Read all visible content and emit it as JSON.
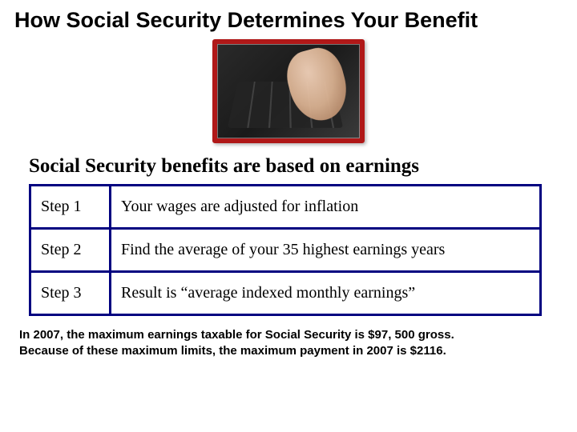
{
  "title": "How Social Security Determines Your Benefit",
  "subtitle": "Social Security benefits are based on earnings",
  "image_alt": "hand-typing-on-calculator",
  "image_border_color": "#b01818",
  "table": {
    "border_color": "#000080",
    "rows": [
      {
        "label": "Step 1",
        "text": "Your wages are adjusted for inflation"
      },
      {
        "label": "Step 2",
        "text": "Find the average of your 35 highest earnings years"
      },
      {
        "label": "Step 3",
        "text": "Result is “average indexed monthly earnings”"
      }
    ]
  },
  "footnote": {
    "line1": "In 2007, the maximum earnings taxable for Social Security is $97, 500 gross.",
    "line2": "Because of these maximum limits, the maximum payment in 2007 is $2116."
  },
  "colors": {
    "background": "#ffffff",
    "text": "#000000"
  }
}
